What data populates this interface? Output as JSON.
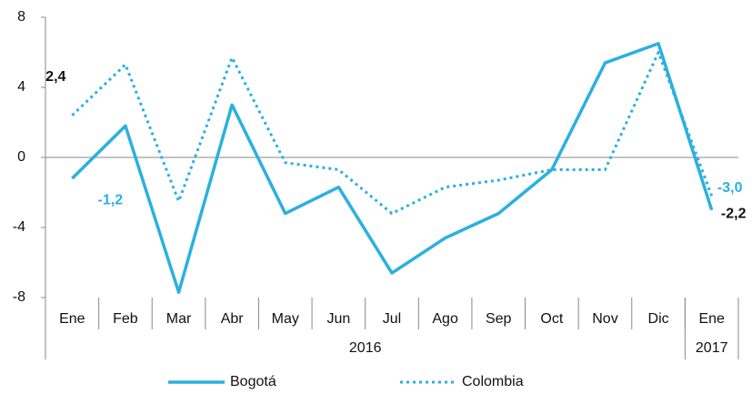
{
  "chart_data": {
    "type": "line",
    "categories": [
      "Ene",
      "Feb",
      "Mar",
      "Abr",
      "May",
      "Jun",
      "Jul",
      "Ago",
      "Sep",
      "Oct",
      "Nov",
      "Dic",
      "Ene"
    ],
    "x_groups": [
      {
        "label": "2016",
        "size": 12
      },
      {
        "label": "2017",
        "size": 1
      }
    ],
    "series": [
      {
        "name": "Bogotá",
        "color": "#2bb0e0",
        "style": "solid",
        "label_color": "#2bb0e0",
        "values": [
          -1.2,
          1.8,
          -7.7,
          3.0,
          -3.2,
          -1.7,
          -6.6,
          -4.6,
          -3.2,
          -0.7,
          5.4,
          6.5,
          -3.0
        ],
        "value_labels": [
          "-1,2",
          null,
          null,
          null,
          null,
          null,
          null,
          null,
          null,
          null,
          null,
          null,
          "-3,0"
        ]
      },
      {
        "name": "Colombia",
        "color": "#2bb0e0",
        "style": "dotted",
        "label_color": "#111111",
        "values": [
          2.4,
          5.3,
          -2.5,
          5.7,
          -0.3,
          -0.7,
          -3.2,
          -1.7,
          -1.3,
          -0.7,
          -0.7,
          6.0,
          -2.2
        ],
        "value_labels": [
          "2,4",
          null,
          null,
          null,
          null,
          null,
          null,
          null,
          null,
          null,
          null,
          null,
          "-2,2"
        ]
      }
    ],
    "ylim": [
      -8,
      8
    ],
    "yticks": [
      -8,
      -4,
      0,
      4,
      8
    ],
    "legend": "bottom"
  }
}
